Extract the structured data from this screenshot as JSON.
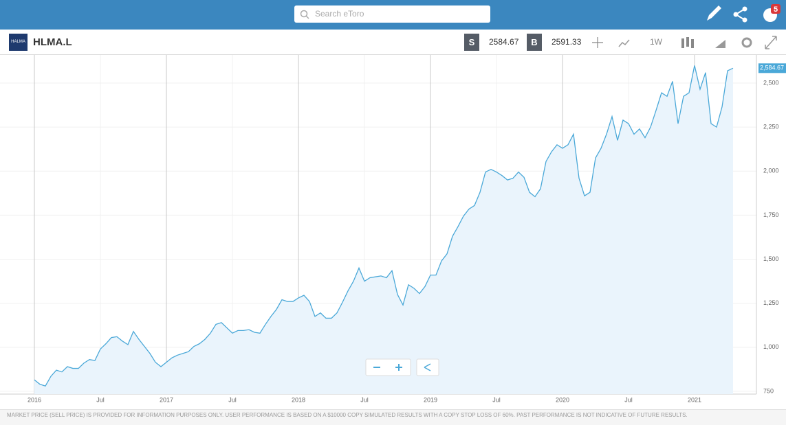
{
  "header": {
    "search_placeholder": "Search eToro",
    "badge": "5"
  },
  "instrument": {
    "logo": "HALMA",
    "symbol": "HLMA.L",
    "sell_label": "S",
    "sell_price": "2584.67",
    "buy_label": "B",
    "buy_price": "2591.33",
    "interval": "1W"
  },
  "footer": "MARKET PRICE (SELL PRICE) IS PROVIDED FOR INFORMATION PURPOSES ONLY. USER PERFORMANCE IS BASED ON A $10000 COPY SIMULATED RESULTS WITH A COPY STOP LOSS OF 60%. PAST PERFORMANCE IS NOT INDICATIVE OF FUTURE RESULTS.",
  "chart_data": {
    "type": "line",
    "categories": [
      "2016",
      null,
      null,
      null,
      null,
      null,
      null,
      null,
      null,
      null,
      null,
      null,
      "Jul",
      null,
      null,
      null,
      null,
      null,
      null,
      null,
      null,
      null,
      null,
      null,
      "2017",
      null,
      null,
      null,
      null,
      null,
      null,
      null,
      null,
      null,
      null,
      null,
      "Jul",
      null,
      null,
      null,
      null,
      null,
      null,
      null,
      null,
      null,
      null,
      null,
      "2018",
      null,
      null,
      null,
      null,
      null,
      null,
      null,
      null,
      null,
      null,
      null,
      "Jul",
      null,
      null,
      null,
      null,
      null,
      null,
      null,
      null,
      null,
      null,
      null,
      "2019",
      null,
      null,
      null,
      null,
      null,
      null,
      null,
      null,
      null,
      null,
      null,
      "Jul",
      null,
      null,
      null,
      null,
      null,
      null,
      null,
      null,
      null,
      null,
      null,
      "2020",
      null,
      null,
      null,
      null,
      null,
      null,
      null,
      null,
      null,
      null,
      null,
      "Jul",
      null,
      null,
      null,
      null,
      null,
      null,
      null,
      null,
      null,
      null,
      null,
      "2021",
      null,
      null,
      null,
      null,
      null,
      null,
      null
    ],
    "series": [
      {
        "color": "#4aa8d8",
        "values": [
          815,
          790,
          780,
          835,
          870,
          860,
          890,
          880,
          880,
          910,
          930,
          925,
          990,
          1020,
          1055,
          1060,
          1035,
          1015,
          1090,
          1045,
          1005,
          965,
          915,
          890,
          915,
          940,
          955,
          965,
          975,
          1005,
          1020,
          1045,
          1080,
          1130,
          1140,
          1110,
          1080,
          1095,
          1095,
          1100,
          1085,
          1080,
          1130,
          1175,
          1215,
          1270,
          1260,
          1260,
          1280,
          1295,
          1260,
          1175,
          1195,
          1165,
          1165,
          1195,
          1255,
          1320,
          1375,
          1450,
          1375,
          1395,
          1400,
          1405,
          1395,
          1435,
          1300,
          1240,
          1355,
          1335,
          1305,
          1345,
          1410,
          1410,
          1490,
          1530,
          1630,
          1685,
          1745,
          1785,
          1805,
          1880,
          1995,
          2010,
          1995,
          1975,
          1950,
          1960,
          1995,
          1965,
          1880,
          1855,
          1900,
          2055,
          2110,
          2150,
          2130,
          2150,
          2210,
          1960,
          1860,
          1880,
          2075,
          2130,
          2210,
          2310,
          2175,
          2290,
          2270,
          2210,
          2240,
          2190,
          2250,
          2345,
          2445,
          2425,
          2510,
          2270,
          2425,
          2445,
          2600,
          2465,
          2560,
          2270,
          2250,
          2365,
          2570,
          2584.67
        ]
      }
    ],
    "current": {
      "value": 2584.67,
      "label": "2,584.67"
    },
    "ylim": [
      734,
      2660
    ],
    "yticks": [
      {
        "value": 750,
        "label": "750"
      },
      {
        "value": 1000,
        "label": "1,000"
      },
      {
        "value": 1250,
        "label": "1,250"
      },
      {
        "value": 1500,
        "label": "1,500"
      },
      {
        "value": 1750,
        "label": "1,750"
      },
      {
        "value": 2000,
        "label": "2,000"
      },
      {
        "value": 2250,
        "label": "2,250"
      },
      {
        "value": 2500,
        "label": "2,500"
      }
    ],
    "grid": true
  }
}
